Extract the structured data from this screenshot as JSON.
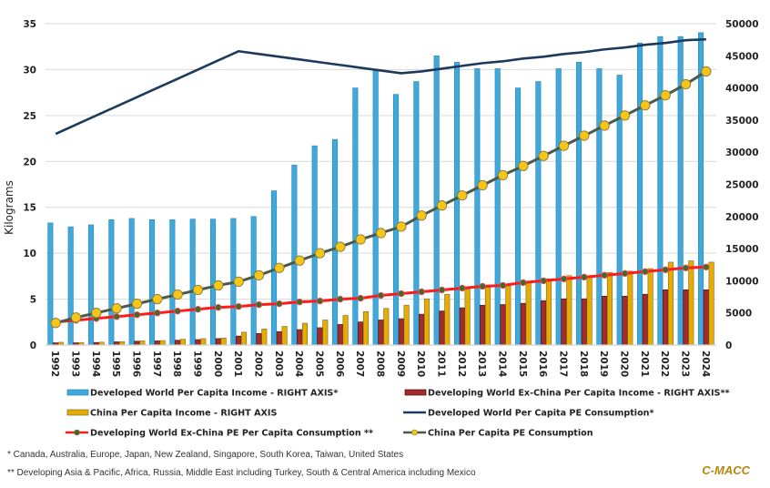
{
  "chart_data": {
    "type": "bar+line",
    "title": "",
    "ylabel": "Kilograms",
    "ylabel_right": "",
    "xlabel": "",
    "ylim": [
      0,
      35
    ],
    "ylim_right": [
      0,
      50000
    ],
    "yticks": [
      "0",
      "5",
      "10",
      "15",
      "20",
      "25",
      "30",
      "35"
    ],
    "yticks_right": [
      "0",
      "5000",
      "10000",
      "15000",
      "20000",
      "25000",
      "30000",
      "35000",
      "40000",
      "45000",
      "50000"
    ],
    "grid": true,
    "legend_position": "bottom",
    "categories": [
      "1992",
      "1993",
      "1994",
      "1995",
      "1996",
      "1997",
      "1998",
      "1999",
      "2000",
      "2001",
      "2002",
      "2003",
      "2004",
      "2005",
      "2006",
      "2007",
      "2008",
      "2009",
      "2010",
      "2011",
      "2012",
      "2013",
      "2014",
      "2015",
      "2016",
      "2017",
      "2018",
      "2019",
      "2020",
      "2021",
      "2022",
      "2023",
      "2024"
    ],
    "bar_series": [
      {
        "name": "Developed World Per Capita Income - RIGHT AXIS*",
        "axis": "right",
        "color": "#3fa9dc",
        "values": [
          19000,
          18400,
          18700,
          19500,
          19700,
          19500,
          19500,
          19600,
          19600,
          19700,
          20000,
          24000,
          28000,
          31000,
          32000,
          40000,
          42800,
          39000,
          41000,
          45000,
          44000,
          43000,
          43000,
          40000,
          41000,
          43000,
          44000,
          43000,
          42000,
          47000,
          48000,
          48000,
          48600
        ]
      },
      {
        "name": "Developing World Ex-China Per Capita Income - RIGHT AXIS**",
        "axis": "right",
        "color": "#a52a2a",
        "values": [
          350,
          350,
          400,
          500,
          600,
          650,
          750,
          850,
          1000,
          1400,
          1800,
          2100,
          2400,
          2700,
          3200,
          3600,
          3900,
          4100,
          4800,
          5300,
          5800,
          6200,
          6300,
          6500,
          6900,
          7200,
          7200,
          7600,
          7600,
          7900,
          8600,
          8600,
          8600
        ]
      },
      {
        "name": "China Per Capita Income - RIGHT AXIS",
        "axis": "right",
        "color": "#e6ad00",
        "values": [
          430,
          400,
          450,
          530,
          650,
          700,
          900,
          1000,
          1100,
          2000,
          2500,
          2900,
          3400,
          3900,
          4600,
          5200,
          5700,
          6200,
          7200,
          7900,
          8700,
          9000,
          9200,
          9700,
          10300,
          10800,
          10800,
          11300,
          11500,
          11900,
          12900,
          13100,
          12900
        ]
      }
    ],
    "line_series": [
      {
        "name": "Developed World Per Capita PE Consumption*",
        "axis": "left",
        "color": "#1b3a5c",
        "marker": "none",
        "values": [
          23.0,
          24.0,
          25.0,
          26.0,
          27.0,
          28.0,
          29.0,
          30.0,
          31.0,
          32.0,
          31.7,
          31.4,
          31.1,
          30.8,
          30.5,
          30.2,
          29.9,
          29.6,
          29.8,
          30.1,
          30.4,
          30.7,
          30.9,
          31.2,
          31.4,
          31.7,
          31.9,
          32.2,
          32.4,
          32.7,
          32.9,
          33.2,
          33.3
        ]
      },
      {
        "name": "Developing World Ex-China PE Per Capita Consumption **",
        "axis": "left",
        "color": "#ff1a1a",
        "marker": "circle",
        "marker_color": "#3e6b2f",
        "values": [
          2.5,
          2.7,
          2.9,
          3.1,
          3.3,
          3.5,
          3.7,
          3.9,
          4.1,
          4.2,
          4.4,
          4.5,
          4.7,
          4.8,
          5.0,
          5.1,
          5.4,
          5.6,
          5.8,
          6.0,
          6.2,
          6.4,
          6.5,
          6.8,
          7.0,
          7.2,
          7.4,
          7.6,
          7.8,
          8.0,
          8.2,
          8.4,
          8.5
        ]
      },
      {
        "name": "China Per Capita PE Consumption",
        "axis": "left",
        "color": "#4a5a4a",
        "marker": "circle",
        "marker_color": "#f5c518",
        "values": [
          2.4,
          3.0,
          3.5,
          4.0,
          4.5,
          5.0,
          5.5,
          6.0,
          6.5,
          6.9,
          7.6,
          8.4,
          9.2,
          10.0,
          10.7,
          11.5,
          12.2,
          12.9,
          14.1,
          15.2,
          16.3,
          17.4,
          18.5,
          19.5,
          20.6,
          21.7,
          22.8,
          23.9,
          25.0,
          26.1,
          27.2,
          28.4,
          29.8
        ]
      }
    ]
  },
  "legend": [
    {
      "label": "Developed World Per Capita Income - RIGHT AXIS*",
      "kind": "bar",
      "color": "#3fa9dc"
    },
    {
      "label": "Developing World Ex-China Per Capita Income - RIGHT AXIS**",
      "kind": "bar",
      "color": "#a52a2a"
    },
    {
      "label": "China Per Capita Income - RIGHT AXIS",
      "kind": "bar",
      "color": "#e6ad00"
    },
    {
      "label": "Developed World Per Capita PE Consumption*",
      "kind": "line",
      "color": "#1b3a5c"
    },
    {
      "label": "Developing World Ex-China PE Per Capita Consumption **",
      "kind": "line-marker",
      "color": "#ff1a1a",
      "marker_color": "#3e6b2f"
    },
    {
      "label": "China Per Capita PE Consumption",
      "kind": "line-marker",
      "color": "#4a5a4a",
      "marker_color": "#f5c518"
    }
  ],
  "notes": {
    "note1": "* Canada, Australia, Europe, Japan, New Zealand, Singapore, South Korea, Taiwan, United States",
    "note2": "** Developing Asia & Pacific, Africa, Russia, Middle East including Turkey, South & Central America including Mexico"
  },
  "brand": "C-MACC"
}
